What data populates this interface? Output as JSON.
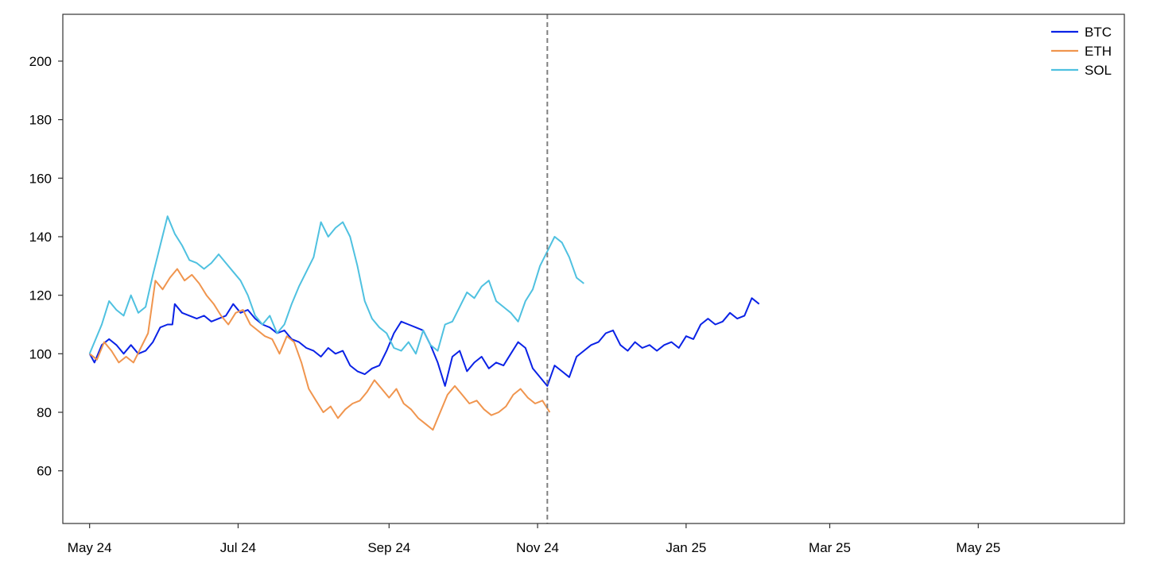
{
  "chart_data": {
    "type": "line",
    "title": "",
    "xlabel": "",
    "ylabel": "",
    "x_range": [
      "2024-04-20",
      "2025-06-30"
    ],
    "ylim": [
      42,
      216
    ],
    "x_ticks": [
      {
        "date": "2024-05-01",
        "label": "May 24"
      },
      {
        "date": "2024-07-01",
        "label": "Jul 24"
      },
      {
        "date": "2024-09-01",
        "label": "Sep 24"
      },
      {
        "date": "2024-11-01",
        "label": "Nov 24"
      },
      {
        "date": "2025-01-01",
        "label": "Jan 25"
      },
      {
        "date": "2025-03-01",
        "label": "Mar 25"
      },
      {
        "date": "2025-05-01",
        "label": "May 25"
      }
    ],
    "y_ticks": [
      60,
      80,
      100,
      120,
      140,
      160,
      180,
      200
    ],
    "grid": false,
    "legend_position": "top-right",
    "vline": {
      "date": "2024-11-05",
      "style": "dashed",
      "color": "#808080"
    },
    "series": [
      {
        "name": "BTC",
        "color": "#0a22e6",
        "points": [
          [
            "2024-05-01",
            100
          ],
          [
            "2024-05-03",
            97
          ],
          [
            "2024-05-06",
            103
          ],
          [
            "2024-05-09",
            105
          ],
          [
            "2024-05-12",
            103
          ],
          [
            "2024-05-15",
            100
          ],
          [
            "2024-05-18",
            103
          ],
          [
            "2024-05-21",
            100
          ],
          [
            "2024-05-24",
            101
          ],
          [
            "2024-05-27",
            104
          ],
          [
            "2024-05-30",
            109
          ],
          [
            "2024-06-02",
            110
          ],
          [
            "2024-06-04",
            110
          ],
          [
            "2024-06-05",
            117
          ],
          [
            "2024-06-08",
            114
          ],
          [
            "2024-06-11",
            113
          ],
          [
            "2024-06-14",
            112
          ],
          [
            "2024-06-17",
            113
          ],
          [
            "2024-06-20",
            111
          ],
          [
            "2024-06-23",
            112
          ],
          [
            "2024-06-26",
            113
          ],
          [
            "2024-06-29",
            117
          ],
          [
            "2024-07-02",
            114
          ],
          [
            "2024-07-05",
            115
          ],
          [
            "2024-07-08",
            112
          ],
          [
            "2024-07-11",
            110
          ],
          [
            "2024-07-14",
            109
          ],
          [
            "2024-07-17",
            107
          ],
          [
            "2024-07-20",
            108
          ],
          [
            "2024-07-23",
            105
          ],
          [
            "2024-07-26",
            104
          ],
          [
            "2024-07-29",
            102
          ],
          [
            "2024-08-01",
            101
          ],
          [
            "2024-08-04",
            99
          ],
          [
            "2024-08-07",
            102
          ],
          [
            "2024-08-10",
            100
          ],
          [
            "2024-08-13",
            101
          ],
          [
            "2024-08-16",
            96
          ],
          [
            "2024-08-19",
            94
          ],
          [
            "2024-08-22",
            93
          ],
          [
            "2024-08-25",
            95
          ],
          [
            "2024-08-28",
            96
          ],
          [
            "2024-08-31",
            101
          ],
          [
            "2024-09-03",
            107
          ],
          [
            "2024-09-06",
            111
          ],
          [
            "2024-09-09",
            110
          ],
          [
            "2024-09-12",
            109
          ],
          [
            "2024-09-15",
            108
          ],
          [
            "2024-09-18",
            103
          ],
          [
            "2024-09-21",
            97
          ],
          [
            "2024-09-24",
            89
          ],
          [
            "2024-09-27",
            99
          ],
          [
            "2024-09-30",
            101
          ],
          [
            "2024-10-03",
            94
          ],
          [
            "2024-10-06",
            97
          ],
          [
            "2024-10-09",
            99
          ],
          [
            "2024-10-12",
            95
          ],
          [
            "2024-10-15",
            97
          ],
          [
            "2024-10-18",
            96
          ],
          [
            "2024-10-21",
            100
          ],
          [
            "2024-10-24",
            104
          ],
          [
            "2024-10-27",
            102
          ],
          [
            "2024-10-30",
            95
          ],
          [
            "2024-11-02",
            92
          ],
          [
            "2024-11-05",
            89
          ],
          [
            "2024-11-08",
            96
          ],
          [
            "2024-11-11",
            94
          ],
          [
            "2024-11-14",
            92
          ],
          [
            "2024-11-17",
            99
          ],
          [
            "2024-11-20",
            101
          ],
          [
            "2024-11-23",
            103
          ],
          [
            "2024-11-26",
            104
          ],
          [
            "2024-11-29",
            107
          ],
          [
            "2024-12-02",
            108
          ],
          [
            "2024-12-05",
            103
          ],
          [
            "2024-12-08",
            101
          ],
          [
            "2024-12-11",
            104
          ],
          [
            "2024-12-14",
            102
          ],
          [
            "2024-12-17",
            103
          ],
          [
            "2024-12-20",
            101
          ],
          [
            "2024-12-23",
            103
          ],
          [
            "2024-12-26",
            104
          ],
          [
            "2024-12-29",
            102
          ],
          [
            "2025-01-01",
            106
          ],
          [
            "2025-01-04",
            105
          ],
          [
            "2025-01-07",
            110
          ],
          [
            "2025-01-10",
            112
          ],
          [
            "2025-01-13",
            110
          ],
          [
            "2025-01-16",
            111
          ],
          [
            "2025-01-19",
            114
          ],
          [
            "2025-01-22",
            112
          ],
          [
            "2025-01-25",
            113
          ],
          [
            "2025-01-28",
            119
          ],
          [
            "2025-01-31",
            117
          ]
        ]
      },
      {
        "name": "ETH",
        "color": "#f0954e",
        "points": [
          [
            "2024-05-01",
            100
          ],
          [
            "2024-05-04",
            98
          ],
          [
            "2024-05-07",
            104
          ],
          [
            "2024-05-10",
            101
          ],
          [
            "2024-05-13",
            97
          ],
          [
            "2024-05-16",
            99
          ],
          [
            "2024-05-19",
            97
          ],
          [
            "2024-05-22",
            102
          ],
          [
            "2024-05-25",
            107
          ],
          [
            "2024-05-28",
            125
          ],
          [
            "2024-05-31",
            122
          ],
          [
            "2024-06-03",
            126
          ],
          [
            "2024-06-06",
            129
          ],
          [
            "2024-06-09",
            125
          ],
          [
            "2024-06-12",
            127
          ],
          [
            "2024-06-15",
            124
          ],
          [
            "2024-06-18",
            120
          ],
          [
            "2024-06-21",
            117
          ],
          [
            "2024-06-24",
            113
          ],
          [
            "2024-06-27",
            110
          ],
          [
            "2024-06-30",
            114
          ],
          [
            "2024-07-03",
            115
          ],
          [
            "2024-07-06",
            110
          ],
          [
            "2024-07-09",
            108
          ],
          [
            "2024-07-12",
            106
          ],
          [
            "2024-07-15",
            105
          ],
          [
            "2024-07-18",
            100
          ],
          [
            "2024-07-21",
            106
          ],
          [
            "2024-07-24",
            104
          ],
          [
            "2024-07-27",
            97
          ],
          [
            "2024-07-30",
            88
          ],
          [
            "2024-08-02",
            84
          ],
          [
            "2024-08-05",
            80
          ],
          [
            "2024-08-08",
            82
          ],
          [
            "2024-08-11",
            78
          ],
          [
            "2024-08-14",
            81
          ],
          [
            "2024-08-17",
            83
          ],
          [
            "2024-08-20",
            84
          ],
          [
            "2024-08-23",
            87
          ],
          [
            "2024-08-26",
            91
          ],
          [
            "2024-08-29",
            88
          ],
          [
            "2024-09-01",
            85
          ],
          [
            "2024-09-04",
            88
          ],
          [
            "2024-09-07",
            83
          ],
          [
            "2024-09-10",
            81
          ],
          [
            "2024-09-13",
            78
          ],
          [
            "2024-09-16",
            76
          ],
          [
            "2024-09-19",
            74
          ],
          [
            "2024-09-22",
            80
          ],
          [
            "2024-09-25",
            86
          ],
          [
            "2024-09-28",
            89
          ],
          [
            "2024-10-01",
            86
          ],
          [
            "2024-10-04",
            83
          ],
          [
            "2024-10-07",
            84
          ],
          [
            "2024-10-10",
            81
          ],
          [
            "2024-10-13",
            79
          ],
          [
            "2024-10-16",
            80
          ],
          [
            "2024-10-19",
            82
          ],
          [
            "2024-10-22",
            86
          ],
          [
            "2024-10-25",
            88
          ],
          [
            "2024-10-28",
            85
          ],
          [
            "2024-10-31",
            83
          ],
          [
            "2024-11-03",
            84
          ],
          [
            "2024-11-06",
            80
          ]
        ]
      },
      {
        "name": "SOL",
        "color": "#4fc1e0",
        "points": [
          [
            "2024-05-01",
            100
          ],
          [
            "2024-05-03",
            104
          ],
          [
            "2024-05-06",
            110
          ],
          [
            "2024-05-09",
            118
          ],
          [
            "2024-05-12",
            115
          ],
          [
            "2024-05-15",
            113
          ],
          [
            "2024-05-18",
            120
          ],
          [
            "2024-05-21",
            114
          ],
          [
            "2024-05-24",
            116
          ],
          [
            "2024-05-27",
            127
          ],
          [
            "2024-05-30",
            137
          ],
          [
            "2024-06-02",
            147
          ],
          [
            "2024-06-05",
            141
          ],
          [
            "2024-06-08",
            137
          ],
          [
            "2024-06-11",
            132
          ],
          [
            "2024-06-14",
            131
          ],
          [
            "2024-06-17",
            129
          ],
          [
            "2024-06-20",
            131
          ],
          [
            "2024-06-23",
            134
          ],
          [
            "2024-06-26",
            131
          ],
          [
            "2024-06-29",
            128
          ],
          [
            "2024-07-02",
            125
          ],
          [
            "2024-07-05",
            120
          ],
          [
            "2024-07-08",
            113
          ],
          [
            "2024-07-11",
            110
          ],
          [
            "2024-07-14",
            113
          ],
          [
            "2024-07-17",
            107
          ],
          [
            "2024-07-20",
            110
          ],
          [
            "2024-07-23",
            117
          ],
          [
            "2024-07-26",
            123
          ],
          [
            "2024-07-29",
            128
          ],
          [
            "2024-08-01",
            133
          ],
          [
            "2024-08-04",
            145
          ],
          [
            "2024-08-07",
            140
          ],
          [
            "2024-08-10",
            143
          ],
          [
            "2024-08-13",
            145
          ],
          [
            "2024-08-16",
            140
          ],
          [
            "2024-08-19",
            130
          ],
          [
            "2024-08-22",
            118
          ],
          [
            "2024-08-25",
            112
          ],
          [
            "2024-08-28",
            109
          ],
          [
            "2024-08-31",
            107
          ],
          [
            "2024-09-03",
            102
          ],
          [
            "2024-09-06",
            101
          ],
          [
            "2024-09-09",
            104
          ],
          [
            "2024-09-12",
            100
          ],
          [
            "2024-09-15",
            108
          ],
          [
            "2024-09-18",
            103
          ],
          [
            "2024-09-21",
            101
          ],
          [
            "2024-09-24",
            110
          ],
          [
            "2024-09-27",
            111
          ],
          [
            "2024-09-30",
            116
          ],
          [
            "2024-10-03",
            121
          ],
          [
            "2024-10-06",
            119
          ],
          [
            "2024-10-09",
            123
          ],
          [
            "2024-10-12",
            125
          ],
          [
            "2024-10-15",
            118
          ],
          [
            "2024-10-18",
            116
          ],
          [
            "2024-10-21",
            114
          ],
          [
            "2024-10-24",
            111
          ],
          [
            "2024-10-27",
            118
          ],
          [
            "2024-10-30",
            122
          ],
          [
            "2024-11-02",
            130
          ],
          [
            "2024-11-05",
            135
          ],
          [
            "2024-11-08",
            140
          ],
          [
            "2024-11-11",
            138
          ],
          [
            "2024-11-14",
            133
          ],
          [
            "2024-11-17",
            126
          ],
          [
            "2024-11-20",
            124
          ]
        ]
      }
    ]
  }
}
